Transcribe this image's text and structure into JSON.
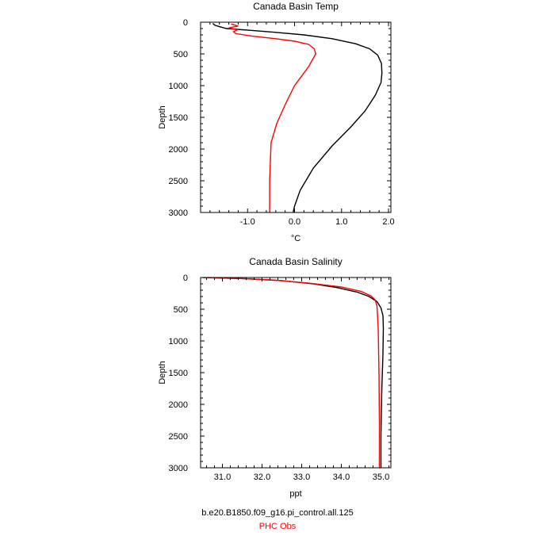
{
  "colors": {
    "model": "#000000",
    "obs": "#ff0000"
  },
  "legend": {
    "model_label": "b.e20.B1850.f09_g16.pi_control.all.125",
    "obs_label": "PHC Obs"
  },
  "chart_data": [
    {
      "type": "line",
      "title": "Canada Basin Temp",
      "xlabel": "°C",
      "ylabel": "Depth",
      "xlim": [
        -2.0,
        2.05
      ],
      "ylim": [
        3000,
        0
      ],
      "xticks": [
        -1.0,
        0.0,
        1.0,
        2.0
      ],
      "xtick_labels": [
        "-1.0",
        "0.0",
        "1.0",
        "2.0"
      ],
      "yticks": [
        0,
        500,
        1000,
        1500,
        2000,
        2500,
        3000
      ],
      "ytick_labels": [
        "0",
        "500",
        "1000",
        "1500",
        "2000",
        "2500",
        "3000"
      ],
      "series": [
        {
          "color": "#000000",
          "x": [
            -1.74,
            -1.69,
            -1.6,
            -1.45,
            -0.9,
            -0.4,
            0.2,
            0.8,
            1.3,
            1.6,
            1.77,
            1.85,
            1.86,
            1.84,
            1.72,
            1.5,
            1.2,
            0.8,
            0.4,
            0.12,
            0.0,
            -0.03
          ],
          "y": [
            20,
            50,
            70,
            100,
            130,
            160,
            200,
            260,
            340,
            420,
            520,
            650,
            800,
            950,
            1150,
            1400,
            1650,
            1950,
            2300,
            2650,
            2900,
            3000
          ]
        },
        {
          "color": "#ff0000",
          "x": [
            -1.35,
            -1.2,
            -1.4,
            -1.22,
            -1.3,
            -1.25,
            -0.9,
            -0.4,
            0.0,
            0.3,
            0.42,
            0.45,
            0.3,
            0.0,
            -0.2,
            -0.38,
            -0.5,
            -0.53,
            -0.53
          ],
          "y": [
            30,
            60,
            90,
            120,
            150,
            180,
            220,
            260,
            300,
            350,
            420,
            500,
            700,
            1000,
            1300,
            1600,
            1900,
            2500,
            3000
          ]
        }
      ]
    },
    {
      "type": "line",
      "title": "Canada Basin Salinity",
      "xlabel": "ppt",
      "ylabel": "Depth",
      "xlim": [
        30.45,
        35.25
      ],
      "ylim": [
        3000,
        0
      ],
      "xticks": [
        31.0,
        32.0,
        33.0,
        34.0,
        35.0
      ],
      "xtick_labels": [
        "31.0",
        "32.0",
        "33.0",
        "34.0",
        "35.0"
      ],
      "yticks": [
        0,
        500,
        1000,
        1500,
        2000,
        2500,
        3000
      ],
      "ytick_labels": [
        "0",
        "500",
        "1000",
        "1500",
        "2000",
        "2500",
        "3000"
      ],
      "series": [
        {
          "color": "#000000",
          "x": [
            30.5,
            31.6,
            32.5,
            33.3,
            33.9,
            34.4,
            34.7,
            34.9,
            35.0,
            35.05,
            35.06,
            35.05,
            35.02,
            35.0,
            35.0
          ],
          "y": [
            0,
            20,
            50,
            100,
            160,
            230,
            300,
            380,
            480,
            600,
            800,
            1200,
            1800,
            2500,
            3000
          ]
        },
        {
          "color": "#ff0000",
          "x": [
            30.6,
            31.4,
            32.3,
            33.2,
            34.0,
            34.5,
            34.75,
            34.85,
            34.9,
            34.93,
            34.95,
            34.96,
            34.96
          ],
          "y": [
            0,
            15,
            40,
            90,
            150,
            220,
            290,
            350,
            450,
            800,
            1500,
            2300,
            3000
          ]
        }
      ]
    }
  ]
}
